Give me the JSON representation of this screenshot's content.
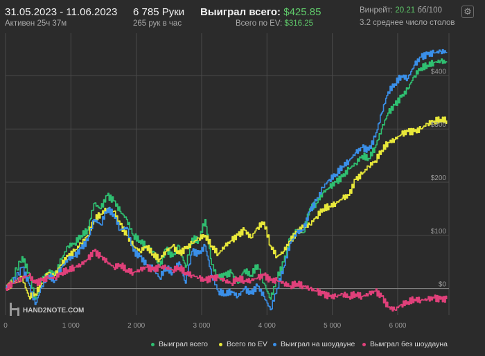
{
  "header": {
    "date_range": "31.05.2023 - 11.06.2023",
    "active_time": "Активен 25ч 37м",
    "hands": "6 785 Руки",
    "hands_per_hour": "265 рук в час",
    "won_total_label": "Выиграл всего:",
    "won_total_value": "$425.85",
    "ev_total_label": "Всего по EV:",
    "ev_total_value": "$316.25",
    "winrate_label": "Винрейт:",
    "winrate_value": "20.21",
    "winrate_unit": "бб/100",
    "avg_tables": "3.2 среднее число столов"
  },
  "watermark": "HAND2NOTE.COM",
  "colors": {
    "won_total": "#2fbf71",
    "ev": "#e8e83a",
    "showdown": "#3a8fe8",
    "non_showdown": "#e0407a",
    "grid": "#4a4a4a",
    "background": "#2b2b2b"
  },
  "chart_data": {
    "type": "line",
    "xlim": [
      0,
      6785
    ],
    "ylim": [
      -50,
      480
    ],
    "x_ticks": [
      0,
      1000,
      2000,
      3000,
      4000,
      5000,
      6000
    ],
    "x_tick_labels": [
      "0",
      "1 000",
      "2 000",
      "3 000",
      "4 000",
      "5 000",
      "6 000"
    ],
    "y_ticks": [
      0,
      100,
      200,
      300,
      400
    ],
    "y_tick_labels": [
      "$0",
      "$100",
      "$200",
      "$300",
      "$400"
    ],
    "legend_position": "bottom-right",
    "grid": true,
    "series": [
      {
        "name": "Выиграл всего",
        "color": "#2fbf71",
        "points": [
          [
            0,
            0
          ],
          [
            100,
            20
          ],
          [
            250,
            60
          ],
          [
            350,
            30
          ],
          [
            450,
            -20
          ],
          [
            550,
            15
          ],
          [
            650,
            30
          ],
          [
            750,
            25
          ],
          [
            850,
            55
          ],
          [
            950,
            80
          ],
          [
            1050,
            85
          ],
          [
            1150,
            100
          ],
          [
            1250,
            110
          ],
          [
            1350,
            160
          ],
          [
            1450,
            150
          ],
          [
            1550,
            175
          ],
          [
            1650,
            165
          ],
          [
            1750,
            145
          ],
          [
            1850,
            130
          ],
          [
            1950,
            100
          ],
          [
            2050,
            90
          ],
          [
            2150,
            80
          ],
          [
            2250,
            70
          ],
          [
            2350,
            40
          ],
          [
            2450,
            75
          ],
          [
            2550,
            60
          ],
          [
            2650,
            80
          ],
          [
            2750,
            40
          ],
          [
            2850,
            95
          ],
          [
            2950,
            90
          ],
          [
            3050,
            130
          ],
          [
            3150,
            45
          ],
          [
            3250,
            20
          ],
          [
            3350,
            25
          ],
          [
            3450,
            30
          ],
          [
            3550,
            10
          ],
          [
            3650,
            35
          ],
          [
            3750,
            25
          ],
          [
            3850,
            45
          ],
          [
            3950,
            10
          ],
          [
            4050,
            -20
          ],
          [
            4150,
            20
          ],
          [
            4250,
            50
          ],
          [
            4350,
            95
          ],
          [
            4450,
            110
          ],
          [
            4550,
            105
          ],
          [
            4650,
            150
          ],
          [
            4750,
            160
          ],
          [
            4850,
            180
          ],
          [
            4950,
            190
          ],
          [
            5050,
            200
          ],
          [
            5150,
            210
          ],
          [
            5250,
            225
          ],
          [
            5350,
            235
          ],
          [
            5450,
            250
          ],
          [
            5550,
            245
          ],
          [
            5650,
            265
          ],
          [
            5750,
            300
          ],
          [
            5850,
            330
          ],
          [
            5950,
            345
          ],
          [
            6050,
            360
          ],
          [
            6150,
            375
          ],
          [
            6250,
            400
          ],
          [
            6350,
            415
          ],
          [
            6450,
            420
          ],
          [
            6550,
            425
          ],
          [
            6650,
            428
          ],
          [
            6750,
            425
          ]
        ]
      },
      {
        "name": "Всего по EV",
        "color": "#e8e83a",
        "points": [
          [
            0,
            0
          ],
          [
            100,
            10
          ],
          [
            250,
            20
          ],
          [
            350,
            -15
          ],
          [
            450,
            -10
          ],
          [
            550,
            10
          ],
          [
            650,
            30
          ],
          [
            750,
            25
          ],
          [
            850,
            45
          ],
          [
            950,
            60
          ],
          [
            1050,
            70
          ],
          [
            1150,
            85
          ],
          [
            1250,
            100
          ],
          [
            1350,
            130
          ],
          [
            1450,
            140
          ],
          [
            1550,
            150
          ],
          [
            1650,
            145
          ],
          [
            1750,
            120
          ],
          [
            1850,
            100
          ],
          [
            1950,
            80
          ],
          [
            2050,
            70
          ],
          [
            2150,
            80
          ],
          [
            2250,
            65
          ],
          [
            2350,
            55
          ],
          [
            2450,
            70
          ],
          [
            2550,
            80
          ],
          [
            2650,
            65
          ],
          [
            2750,
            75
          ],
          [
            2850,
            85
          ],
          [
            2950,
            95
          ],
          [
            3050,
            100
          ],
          [
            3150,
            80
          ],
          [
            3250,
            65
          ],
          [
            3350,
            80
          ],
          [
            3450,
            90
          ],
          [
            3550,
            100
          ],
          [
            3650,
            110
          ],
          [
            3750,
            95
          ],
          [
            3850,
            115
          ],
          [
            3950,
            125
          ],
          [
            4050,
            80
          ],
          [
            4150,
            60
          ],
          [
            4250,
            70
          ],
          [
            4350,
            90
          ],
          [
            4450,
            105
          ],
          [
            4550,
            115
          ],
          [
            4650,
            120
          ],
          [
            4750,
            135
          ],
          [
            4850,
            150
          ],
          [
            4950,
            155
          ],
          [
            5050,
            160
          ],
          [
            5150,
            170
          ],
          [
            5250,
            175
          ],
          [
            5350,
            205
          ],
          [
            5450,
            215
          ],
          [
            5550,
            230
          ],
          [
            5650,
            240
          ],
          [
            5750,
            260
          ],
          [
            5850,
            275
          ],
          [
            5950,
            280
          ],
          [
            6050,
            290
          ],
          [
            6150,
            295
          ],
          [
            6250,
            295
          ],
          [
            6350,
            300
          ],
          [
            6450,
            310
          ],
          [
            6550,
            315
          ],
          [
            6650,
            318
          ],
          [
            6750,
            316
          ]
        ]
      },
      {
        "name": "Выиграл на шоудауне",
        "color": "#3a8fe8",
        "points": [
          [
            0,
            0
          ],
          [
            100,
            10
          ],
          [
            250,
            40
          ],
          [
            350,
            10
          ],
          [
            450,
            -30
          ],
          [
            550,
            5
          ],
          [
            650,
            25
          ],
          [
            750,
            15
          ],
          [
            850,
            40
          ],
          [
            950,
            55
          ],
          [
            1050,
            60
          ],
          [
            1150,
            75
          ],
          [
            1250,
            90
          ],
          [
            1350,
            130
          ],
          [
            1450,
            120
          ],
          [
            1550,
            150
          ],
          [
            1650,
            140
          ],
          [
            1750,
            110
          ],
          [
            1850,
            115
          ],
          [
            1950,
            70
          ],
          [
            2050,
            60
          ],
          [
            2150,
            45
          ],
          [
            2250,
            40
          ],
          [
            2350,
            20
          ],
          [
            2450,
            40
          ],
          [
            2550,
            30
          ],
          [
            2650,
            50
          ],
          [
            2750,
            10
          ],
          [
            2850,
            70
          ],
          [
            2950,
            65
          ],
          [
            3050,
            80
          ],
          [
            3150,
            25
          ],
          [
            3250,
            -5
          ],
          [
            3350,
            -10
          ],
          [
            3450,
            -5
          ],
          [
            3550,
            -15
          ],
          [
            3650,
            0
          ],
          [
            3750,
            -10
          ],
          [
            3850,
            5
          ],
          [
            3950,
            -15
          ],
          [
            4050,
            -40
          ],
          [
            4150,
            0
          ],
          [
            4250,
            40
          ],
          [
            4350,
            85
          ],
          [
            4450,
            105
          ],
          [
            4550,
            110
          ],
          [
            4650,
            145
          ],
          [
            4750,
            165
          ],
          [
            4850,
            190
          ],
          [
            4950,
            205
          ],
          [
            5050,
            215
          ],
          [
            5150,
            230
          ],
          [
            5250,
            240
          ],
          [
            5350,
            255
          ],
          [
            5450,
            265
          ],
          [
            5550,
            260
          ],
          [
            5650,
            285
          ],
          [
            5750,
            330
          ],
          [
            5850,
            370
          ],
          [
            5950,
            385
          ],
          [
            6050,
            400
          ],
          [
            6150,
            395
          ],
          [
            6250,
            420
          ],
          [
            6350,
            435
          ],
          [
            6450,
            440
          ],
          [
            6550,
            443
          ],
          [
            6650,
            446
          ],
          [
            6750,
            445
          ]
        ]
      },
      {
        "name": "Выиграл без шоудауна",
        "color": "#e0407a",
        "points": [
          [
            0,
            0
          ],
          [
            100,
            10
          ],
          [
            250,
            20
          ],
          [
            350,
            25
          ],
          [
            450,
            10
          ],
          [
            550,
            15
          ],
          [
            650,
            20
          ],
          [
            750,
            20
          ],
          [
            850,
            30
          ],
          [
            950,
            35
          ],
          [
            1050,
            40
          ],
          [
            1150,
            45
          ],
          [
            1250,
            55
          ],
          [
            1350,
            70
          ],
          [
            1450,
            60
          ],
          [
            1550,
            50
          ],
          [
            1650,
            40
          ],
          [
            1750,
            45
          ],
          [
            1850,
            35
          ],
          [
            1950,
            30
          ],
          [
            2050,
            35
          ],
          [
            2150,
            40
          ],
          [
            2250,
            35
          ],
          [
            2350,
            40
          ],
          [
            2450,
            40
          ],
          [
            2550,
            35
          ],
          [
            2650,
            40
          ],
          [
            2750,
            30
          ],
          [
            2850,
            25
          ],
          [
            2950,
            20
          ],
          [
            3050,
            15
          ],
          [
            3150,
            20
          ],
          [
            3250,
            20
          ],
          [
            3350,
            15
          ],
          [
            3450,
            10
          ],
          [
            3550,
            20
          ],
          [
            3650,
            15
          ],
          [
            3750,
            15
          ],
          [
            3850,
            20
          ],
          [
            3950,
            25
          ],
          [
            4050,
            15
          ],
          [
            4150,
            15
          ],
          [
            4250,
            10
          ],
          [
            4350,
            5
          ],
          [
            4450,
            10
          ],
          [
            4550,
            5
          ],
          [
            4650,
            0
          ],
          [
            4750,
            -5
          ],
          [
            4850,
            -10
          ],
          [
            4950,
            -15
          ],
          [
            5050,
            -15
          ],
          [
            5150,
            -10
          ],
          [
            5250,
            -15
          ],
          [
            5350,
            -10
          ],
          [
            5450,
            -15
          ],
          [
            5550,
            -10
          ],
          [
            5650,
            -5
          ],
          [
            5750,
            -15
          ],
          [
            5850,
            -35
          ],
          [
            5950,
            -40
          ],
          [
            6050,
            -30
          ],
          [
            6150,
            -25
          ],
          [
            6250,
            -20
          ],
          [
            6350,
            -22
          ],
          [
            6450,
            -20
          ],
          [
            6550,
            -18
          ],
          [
            6650,
            -20
          ],
          [
            6750,
            -20
          ]
        ]
      }
    ]
  }
}
